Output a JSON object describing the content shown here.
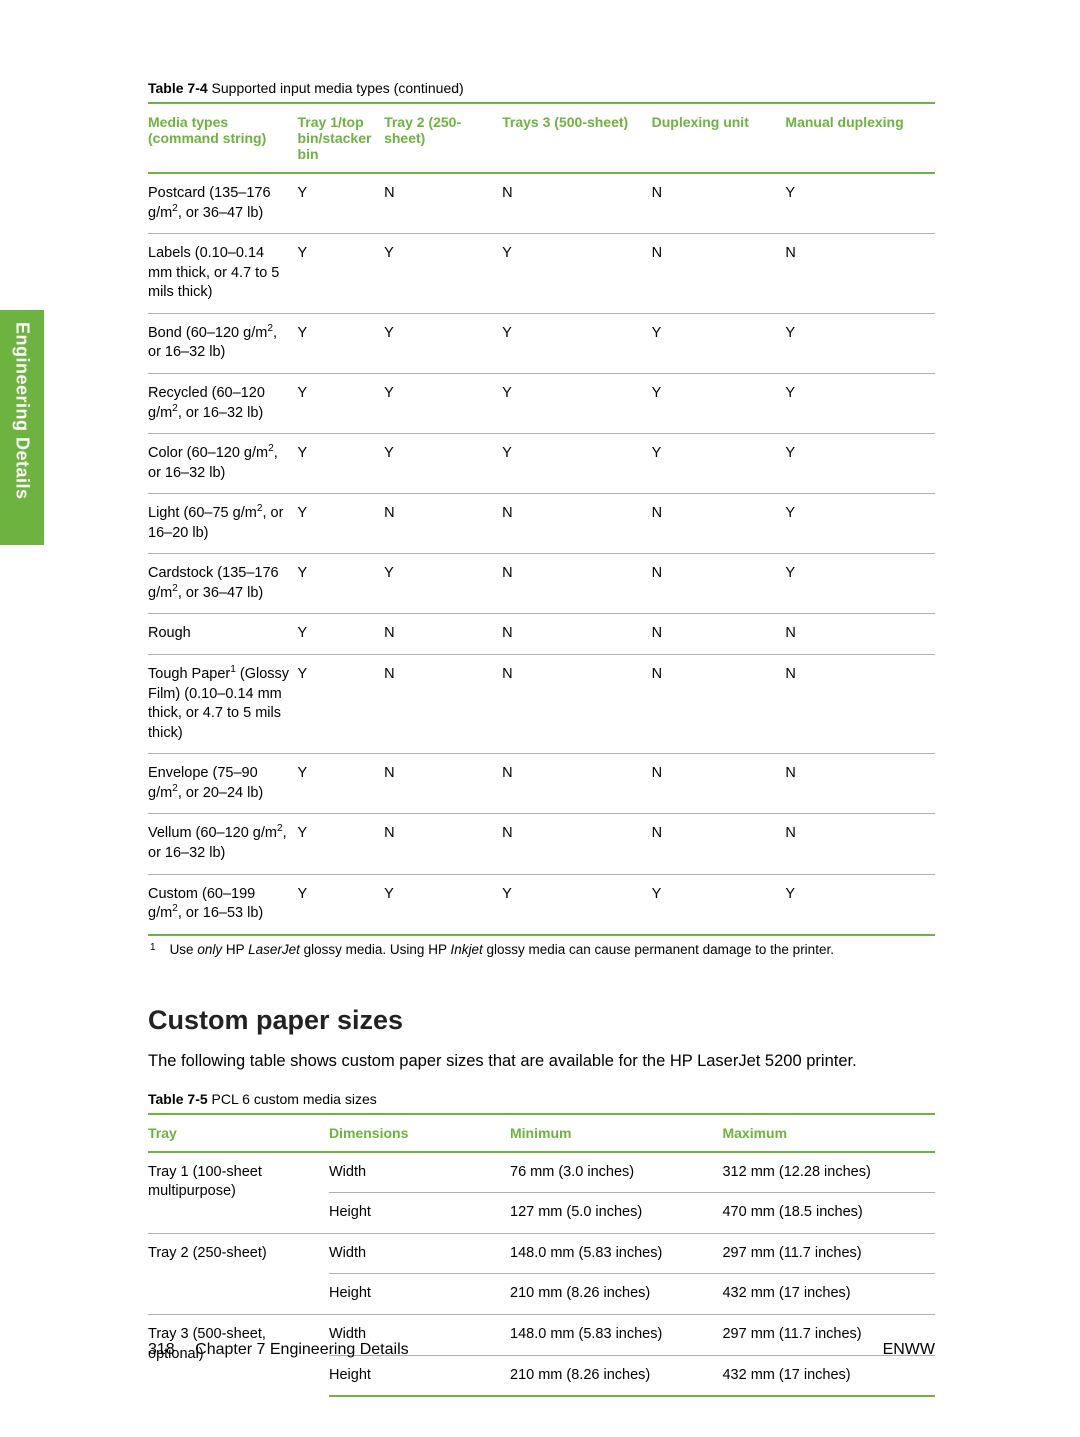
{
  "sideTab": "Engineering Details",
  "table1": {
    "captionBold": "Table 7-4",
    "captionRest": "  Supported input media types (continued)",
    "headers": [
      "Media types (command string)",
      "Tray 1/top bin/stacker bin",
      "Tray 2 (250-sheet)",
      "Trays 3 (500-sheet)",
      "Duplexing unit",
      "Manual duplexing"
    ],
    "rows": [
      {
        "c0": "Postcard (135–176 g/m<sup>2</sup>, or 36–47 lb)",
        "c1": "Y",
        "c2": "N",
        "c3": "N",
        "c4": "N",
        "c5": "Y"
      },
      {
        "c0": "Labels (0.10–0.14 mm thick, or 4.7 to 5 mils thick)",
        "c1": "Y",
        "c2": "Y",
        "c3": "Y",
        "c4": "N",
        "c5": "N"
      },
      {
        "c0": "Bond (60–120 g/m<sup>2</sup>, or 16–32 lb)",
        "c1": "Y",
        "c2": "Y",
        "c3": "Y",
        "c4": "Y",
        "c5": "Y"
      },
      {
        "c0": "Recycled (60–120 g/m<sup>2</sup>, or 16–32 lb)",
        "c1": "Y",
        "c2": "Y",
        "c3": "Y",
        "c4": "Y",
        "c5": "Y"
      },
      {
        "c0": "Color (60–120 g/m<sup>2</sup>, or 16–32 lb)",
        "c1": "Y",
        "c2": "Y",
        "c3": "Y",
        "c4": "Y",
        "c5": "Y"
      },
      {
        "c0": "Light (60–75 g/m<sup>2</sup>, or 16–20 lb)",
        "c1": "Y",
        "c2": "N",
        "c3": "N",
        "c4": "N",
        "c5": "Y"
      },
      {
        "c0": "Cardstock (135–176 g/m<sup>2</sup>, or 36–47 lb)",
        "c1": "Y",
        "c2": "Y",
        "c3": "N",
        "c4": "N",
        "c5": "Y"
      },
      {
        "c0": "Rough",
        "c1": "Y",
        "c2": "N",
        "c3": "N",
        "c4": "N",
        "c5": "N"
      },
      {
        "c0": "Tough Paper<sup>1</sup> (Glossy Film) (0.10–0.14 mm thick, or 4.7 to 5 mils thick)",
        "c1": "Y",
        "c2": "N",
        "c3": "N",
        "c4": "N",
        "c5": "N"
      },
      {
        "c0": "Envelope (75–90 g/m<sup>2</sup>, or 20–24 lb)",
        "c1": "Y",
        "c2": "N",
        "c3": "N",
        "c4": "N",
        "c5": "N"
      },
      {
        "c0": "Vellum (60–120 g/m<sup>2</sup>, or 16–32 lb)",
        "c1": "Y",
        "c2": "N",
        "c3": "N",
        "c4": "N",
        "c5": "N"
      },
      {
        "c0": "Custom (60–199 g/m<sup>2</sup>, or 16–53 lb)",
        "c1": "Y",
        "c2": "Y",
        "c3": "Y",
        "c4": "Y",
        "c5": "Y"
      }
    ]
  },
  "footnote": {
    "num": "1",
    "html": "Use <span class=\"it\">only</span> HP <span class=\"it\">LaserJet</span> glossy media. Using HP <span class=\"it\">Inkjet</span> glossy media can cause permanent damage to the printer."
  },
  "sectionTitle": "Custom paper sizes",
  "intro": "The following table shows custom paper sizes that are available for the HP LaserJet 5200 printer.",
  "table2": {
    "captionBold": "Table 7-5",
    "captionRest": "  PCL 6 custom media sizes",
    "headers": [
      "Tray",
      "Dimensions",
      "Minimum",
      "Maximum"
    ],
    "groups": [
      {
        "tray": "Tray 1 (100-sheet multipurpose)",
        "rows": [
          {
            "dim": "Width",
            "min": "76 mm (3.0 inches)",
            "max": "312 mm (12.28 inches)"
          },
          {
            "dim": "Height",
            "min": "127 mm (5.0 inches)",
            "max": "470 mm (18.5 inches)"
          }
        ]
      },
      {
        "tray": "Tray 2 (250-sheet)",
        "rows": [
          {
            "dim": "Width",
            "min": "148.0 mm (5.83 inches)",
            "max": "297 mm (11.7 inches)"
          },
          {
            "dim": "Height",
            "min": "210 mm (8.26 inches)",
            "max": "432 mm (17 inches)"
          }
        ]
      },
      {
        "tray": "Tray 3 (500-sheet, optional)",
        "rows": [
          {
            "dim": "Width",
            "min": "148.0 mm (5.83 inches)",
            "max": "297 mm (11.7 inches)"
          },
          {
            "dim": "Height",
            "min": "210 mm (8.26 inches)",
            "max": "432 mm (17 inches)"
          }
        ]
      }
    ]
  },
  "footer": {
    "pageNum": "318",
    "chapter": "Chapter 7   Engineering Details",
    "right": "ENWW"
  }
}
